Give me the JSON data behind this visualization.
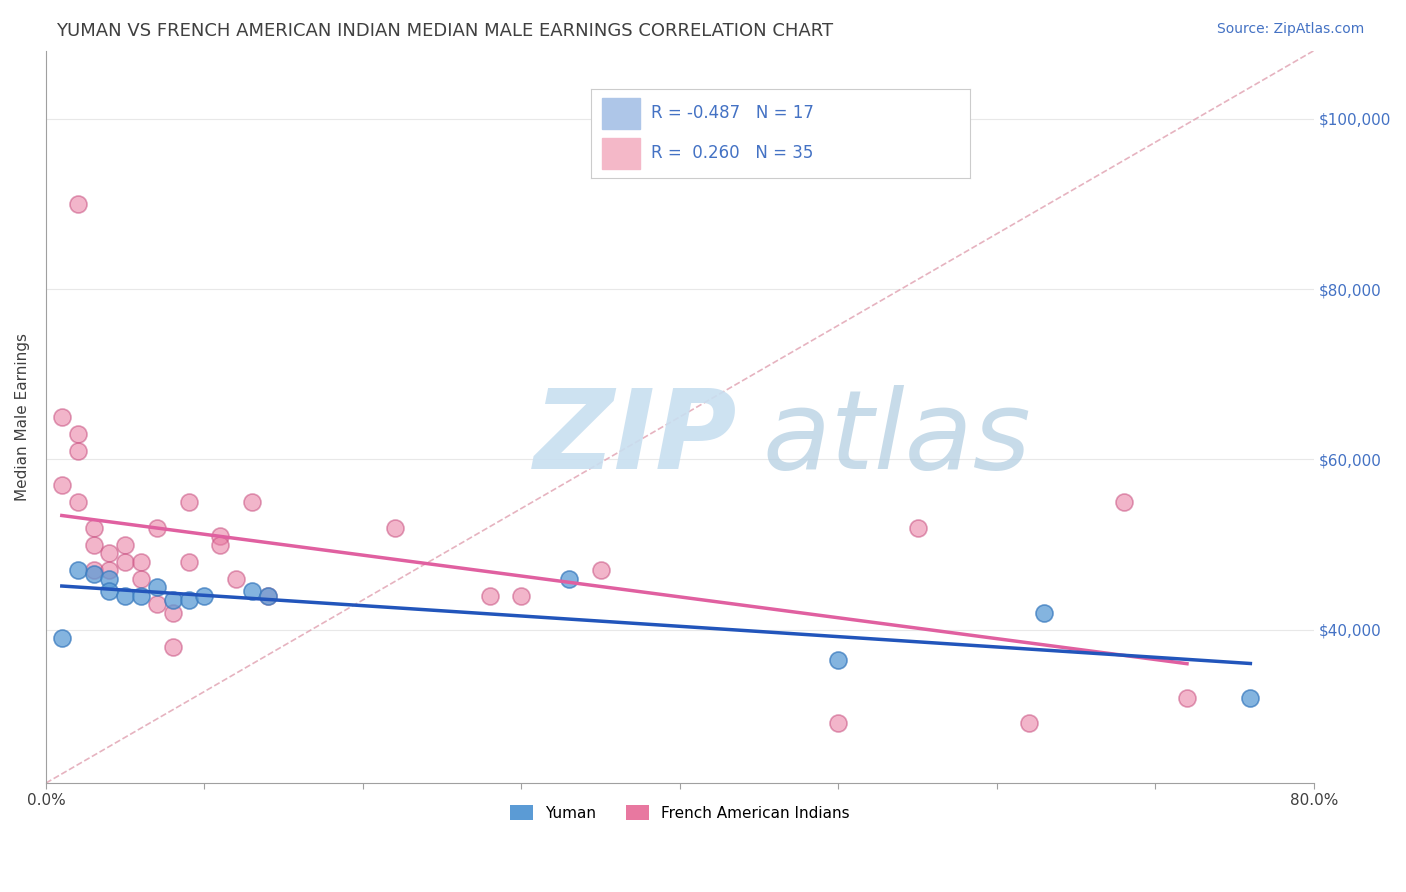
{
  "title": "YUMAN VS FRENCH AMERICAN INDIAN MEDIAN MALE EARNINGS CORRELATION CHART",
  "source_text": "Source: ZipAtlas.com",
  "ylabel": "Median Male Earnings",
  "xlim": [
    0.0,
    0.8
  ],
  "ylim": [
    22000,
    108000
  ],
  "ytick_values": [
    40000,
    60000,
    80000,
    100000
  ],
  "ytick_labels_right": [
    "$40,000",
    "$60,000",
    "$80,000",
    "$100,000"
  ],
  "yuman_scatter": {
    "x": [
      0.01,
      0.02,
      0.03,
      0.04,
      0.04,
      0.05,
      0.06,
      0.07,
      0.08,
      0.09,
      0.1,
      0.13,
      0.14,
      0.33,
      0.5,
      0.63,
      0.76
    ],
    "y": [
      39000,
      47000,
      46500,
      46000,
      44500,
      44000,
      44000,
      45000,
      43500,
      43500,
      44000,
      44500,
      44000,
      46000,
      36500,
      42000,
      32000
    ],
    "color": "#5b9bd5",
    "edge_color": "#3a7bbf"
  },
  "french_scatter": {
    "x": [
      0.01,
      0.01,
      0.02,
      0.02,
      0.02,
      0.03,
      0.03,
      0.03,
      0.04,
      0.04,
      0.05,
      0.05,
      0.06,
      0.06,
      0.07,
      0.07,
      0.08,
      0.08,
      0.09,
      0.09,
      0.11,
      0.11,
      0.12,
      0.13,
      0.14,
      0.22,
      0.28,
      0.3,
      0.35,
      0.5,
      0.55,
      0.62,
      0.68,
      0.72,
      0.02
    ],
    "y": [
      65000,
      57000,
      63000,
      61000,
      55000,
      52000,
      50000,
      47000,
      49000,
      47000,
      50000,
      48000,
      48000,
      46000,
      52000,
      43000,
      42000,
      38000,
      55000,
      48000,
      51000,
      50000,
      46000,
      55000,
      44000,
      52000,
      44000,
      44000,
      47000,
      29000,
      52000,
      29000,
      55000,
      32000,
      90000
    ],
    "color": "#e878a0",
    "edge_color": "#c85080"
  },
  "yuman_line_color": "#2255bb",
  "french_line_color": "#e060a0",
  "diag_line_color": "#e0a0b0",
  "diag_line_style": "--",
  "watermark_zip_color": "#c8dff0",
  "watermark_atlas_color": "#b0cce0",
  "background_color": "#ffffff",
  "title_color": "#404040",
  "source_color": "#4472c4",
  "axis_color": "#a0a0a0",
  "grid_color": "#e8e8e8",
  "title_fontsize": 13,
  "label_fontsize": 11,
  "tick_fontsize": 11,
  "legend_fontsize": 12,
  "source_fontsize": 10,
  "legend_blue_color": "#aec6e8",
  "legend_pink_color": "#f4b8c8",
  "legend_text_color": "#4472c4"
}
